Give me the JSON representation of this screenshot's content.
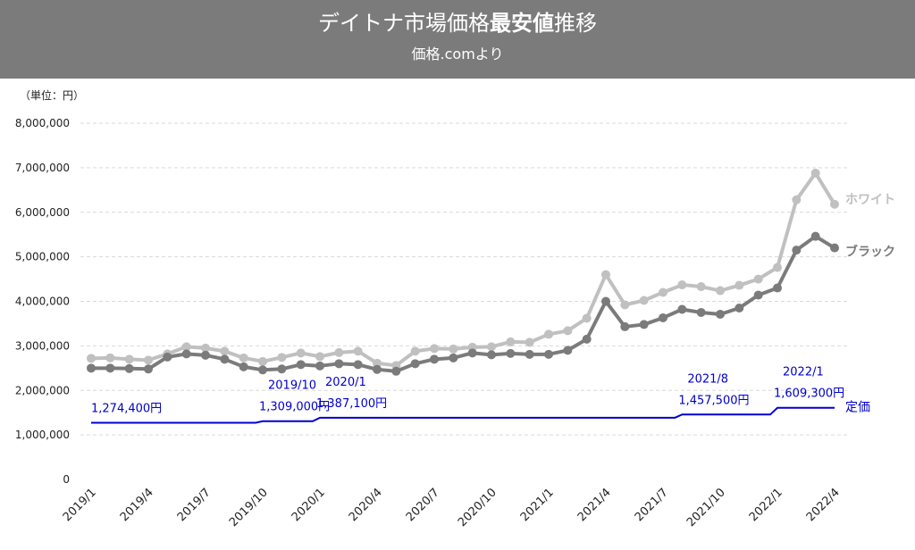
{
  "header": {
    "title_pre": "デイトナ市場価格",
    "title_bold": "最安値",
    "title_post": "推移",
    "subtitle": "価格.comより"
  },
  "colors": {
    "header_bg": "#7b7b7b",
    "white_series": "#c0c0c0",
    "black_series": "#7b7b7b",
    "list_price": "#0000cc"
  },
  "chart_data": {
    "type": "line",
    "unit_label": "（単位：円）",
    "ylim": [
      0,
      8000000
    ],
    "yticks": [
      0,
      1000000,
      2000000,
      3000000,
      4000000,
      5000000,
      6000000,
      7000000,
      8000000
    ],
    "ytick_labels": [
      "0",
      "1,000,000",
      "2,000,000",
      "3,000,000",
      "4,000,000",
      "5,000,000",
      "6,000,000",
      "7,000,000",
      "8,000,000"
    ],
    "x": [
      "2019/1",
      "2019/2",
      "2019/3",
      "2019/4",
      "2019/5",
      "2019/6",
      "2019/7",
      "2019/8",
      "2019/9",
      "2019/10",
      "2019/11",
      "2019/12",
      "2020/1",
      "2020/2",
      "2020/3",
      "2020/4",
      "2020/5",
      "2020/6",
      "2020/7",
      "2020/8",
      "2020/9",
      "2020/10",
      "2020/11",
      "2020/12",
      "2021/1",
      "2021/2",
      "2021/3",
      "2021/4",
      "2021/5",
      "2021/6",
      "2021/7",
      "2021/8",
      "2021/9",
      "2021/10",
      "2021/11",
      "2021/12",
      "2022/1",
      "2022/2",
      "2022/3",
      "2022/4"
    ],
    "xtick_labels": [
      "2019/1",
      "2019/4",
      "2019/7",
      "2019/10",
      "2020/1",
      "2020/4",
      "2020/7",
      "2020/10",
      "2021/1",
      "2021/4",
      "2021/7",
      "2021/10",
      "2022/1",
      "2022/4"
    ],
    "grid": true,
    "series": [
      {
        "name": "ホワイト",
        "values": [
          2720000,
          2730000,
          2700000,
          2680000,
          2820000,
          2980000,
          2950000,
          2880000,
          2730000,
          2650000,
          2740000,
          2840000,
          2760000,
          2850000,
          2880000,
          2610000,
          2560000,
          2880000,
          2940000,
          2930000,
          2970000,
          2980000,
          3090000,
          3080000,
          3260000,
          3340000,
          3620000,
          4600000,
          3920000,
          4020000,
          4200000,
          4370000,
          4330000,
          4240000,
          4360000,
          4500000,
          4760000,
          6280000,
          6880000,
          6180000
        ]
      },
      {
        "name": "ブラック",
        "values": [
          2500000,
          2500000,
          2490000,
          2480000,
          2750000,
          2820000,
          2790000,
          2700000,
          2530000,
          2460000,
          2480000,
          2580000,
          2550000,
          2600000,
          2580000,
          2470000,
          2430000,
          2600000,
          2700000,
          2730000,
          2840000,
          2800000,
          2830000,
          2810000,
          2810000,
          2900000,
          3150000,
          4000000,
          3430000,
          3480000,
          3630000,
          3820000,
          3750000,
          3710000,
          3850000,
          4140000,
          4300000,
          5150000,
          5460000,
          5200000
        ]
      },
      {
        "name": "定価",
        "values": [
          1274400,
          1274400,
          1274400,
          1274400,
          1274400,
          1274400,
          1274400,
          1274400,
          1274400,
          1309000,
          1309000,
          1309000,
          1387100,
          1387100,
          1387100,
          1387100,
          1387100,
          1387100,
          1387100,
          1387100,
          1387100,
          1387100,
          1387100,
          1387100,
          1387100,
          1387100,
          1387100,
          1387100,
          1387100,
          1387100,
          1387100,
          1457500,
          1457500,
          1457500,
          1457500,
          1457500,
          1609300,
          1609300,
          1609300,
          1609300
        ]
      }
    ],
    "annotations": [
      {
        "index": 0,
        "date": "",
        "price": "1,274,400円"
      },
      {
        "index": 9,
        "date": "2019/10",
        "price": "1,309,000円"
      },
      {
        "index": 12,
        "date": "2020/1",
        "price": "1,387,100円"
      },
      {
        "index": 31,
        "date": "2021/8",
        "price": "1,457,500円"
      },
      {
        "index": 36,
        "date": "2022/1",
        "price": "1,609,300円"
      }
    ]
  }
}
